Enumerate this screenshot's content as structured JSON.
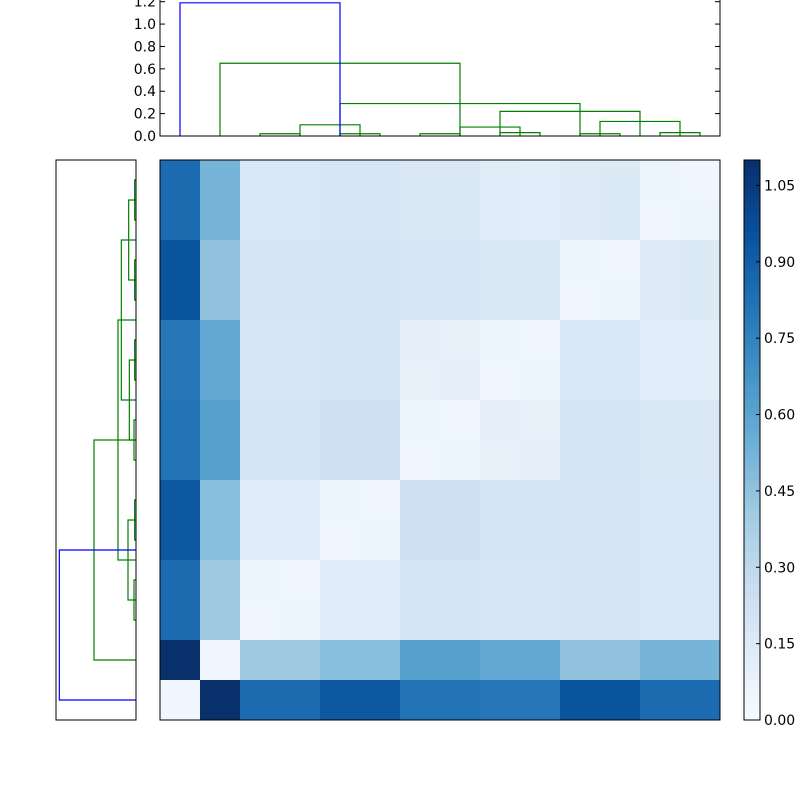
{
  "chart_data": [
    {
      "type": "dendrogram",
      "orientation": "top",
      "ylim": [
        0.0,
        1.2
      ],
      "yticks": [
        "0.0",
        "0.2",
        "0.4",
        "0.6",
        "0.8",
        "1.0",
        "1.2"
      ],
      "leaf_count": 14,
      "links": [
        {
          "left": 2,
          "right": 3,
          "height": 0.02,
          "color": "#008000"
        },
        {
          "left": 4,
          "right": 5,
          "height": 0.02,
          "color": "#008000"
        },
        {
          "left": 6,
          "right": 7,
          "height": 0.02,
          "color": "#008000"
        },
        {
          "left": 8,
          "right": 9,
          "height": 0.03,
          "color": "#008000"
        },
        {
          "left": 10,
          "right": 11,
          "height": 0.02,
          "color": "#008000"
        },
        {
          "left": 12,
          "right": 13,
          "height": 0.03,
          "color": "#008000"
        },
        {
          "left": 3,
          "right": 4.5,
          "height": 0.1,
          "color": "#008000"
        },
        {
          "left": 7,
          "right": 8.5,
          "height": 0.08,
          "color": "#008000"
        },
        {
          "left": 10.5,
          "right": 12.5,
          "height": 0.13,
          "color": "#008000"
        },
        {
          "left": 8,
          "right": 11.5,
          "height": 0.22,
          "color": "#008000"
        },
        {
          "left": 4,
          "right": 10,
          "height": 0.29,
          "color": "#008000"
        },
        {
          "left": 1,
          "right": 7,
          "height": 0.65,
          "color": "#008000"
        },
        {
          "left": 0,
          "right": 4,
          "height": 1.19,
          "color": "#0000ff"
        }
      ]
    },
    {
      "type": "dendrogram",
      "orientation": "left",
      "leaf_count": 14,
      "links": [
        {
          "left": 0,
          "right": 1,
          "height": 0.02,
          "color": "#008000"
        },
        {
          "left": 2,
          "right": 3,
          "height": 0.02,
          "color": "#008000"
        },
        {
          "left": 4,
          "right": 5,
          "height": 0.02,
          "color": "#008000"
        },
        {
          "left": 6,
          "right": 7,
          "height": 0.03,
          "color": "#008000"
        },
        {
          "left": 8,
          "right": 9,
          "height": 0.02,
          "color": "#008000"
        },
        {
          "left": 10,
          "right": 11,
          "height": 0.03,
          "color": "#008000"
        },
        {
          "left": 0.5,
          "right": 2.5,
          "height": 0.11,
          "color": "#008000"
        },
        {
          "left": 4.5,
          "right": 6.5,
          "height": 0.1,
          "color": "#008000"
        },
        {
          "left": 8.5,
          "right": 10.5,
          "height": 0.12,
          "color": "#008000"
        },
        {
          "left": 1.5,
          "right": 5.5,
          "height": 0.22,
          "color": "#008000"
        },
        {
          "left": 3.5,
          "right": 9.5,
          "height": 0.27,
          "color": "#008000"
        },
        {
          "left": 6.5,
          "right": 12,
          "height": 0.63,
          "color": "#008000"
        },
        {
          "left": 9.25,
          "right": 13,
          "height": 1.15,
          "color": "#0000ff"
        }
      ]
    },
    {
      "type": "heatmap",
      "rows": 14,
      "cols": 14,
      "colormap": "Blues",
      "colormap_stops": [
        "#f7fbff",
        "#deebf7",
        "#c6dbef",
        "#9ecae1",
        "#6baed6",
        "#4292c6",
        "#2171b5",
        "#08519c",
        "#08306b"
      ],
      "vmin": 0.0,
      "vmax": 1.1,
      "values": [
        [
          0.85,
          0.52,
          0.17,
          0.17,
          0.18,
          0.18,
          0.16,
          0.16,
          0.13,
          0.12,
          0.14,
          0.15,
          0.06,
          0.04
        ],
        [
          0.85,
          0.52,
          0.17,
          0.17,
          0.18,
          0.18,
          0.16,
          0.16,
          0.13,
          0.12,
          0.14,
          0.15,
          0.04,
          0.06
        ],
        [
          0.95,
          0.45,
          0.19,
          0.19,
          0.2,
          0.2,
          0.18,
          0.18,
          0.16,
          0.16,
          0.06,
          0.04,
          0.14,
          0.15
        ],
        [
          0.95,
          0.45,
          0.19,
          0.19,
          0.2,
          0.2,
          0.18,
          0.18,
          0.16,
          0.16,
          0.04,
          0.06,
          0.14,
          0.15
        ],
        [
          0.8,
          0.58,
          0.18,
          0.18,
          0.2,
          0.2,
          0.1,
          0.09,
          0.06,
          0.04,
          0.17,
          0.17,
          0.12,
          0.12
        ],
        [
          0.8,
          0.58,
          0.18,
          0.18,
          0.2,
          0.2,
          0.09,
          0.1,
          0.04,
          0.06,
          0.17,
          0.17,
          0.12,
          0.12
        ],
        [
          0.82,
          0.62,
          0.2,
          0.2,
          0.23,
          0.23,
          0.06,
          0.04,
          0.1,
          0.09,
          0.2,
          0.2,
          0.16,
          0.16
        ],
        [
          0.82,
          0.62,
          0.2,
          0.2,
          0.23,
          0.23,
          0.04,
          0.06,
          0.09,
          0.1,
          0.2,
          0.2,
          0.16,
          0.16
        ],
        [
          0.93,
          0.47,
          0.13,
          0.13,
          0.06,
          0.04,
          0.23,
          0.23,
          0.2,
          0.2,
          0.19,
          0.19,
          0.17,
          0.17
        ],
        [
          0.93,
          0.47,
          0.13,
          0.13,
          0.04,
          0.06,
          0.23,
          0.23,
          0.2,
          0.2,
          0.19,
          0.19,
          0.17,
          0.17
        ],
        [
          0.85,
          0.41,
          0.06,
          0.04,
          0.13,
          0.13,
          0.2,
          0.2,
          0.18,
          0.18,
          0.19,
          0.19,
          0.17,
          0.17
        ],
        [
          0.85,
          0.41,
          0.04,
          0.06,
          0.13,
          0.13,
          0.2,
          0.2,
          0.18,
          0.18,
          0.19,
          0.19,
          0.17,
          0.17
        ],
        [
          1.1,
          0.04,
          0.41,
          0.41,
          0.47,
          0.47,
          0.62,
          0.62,
          0.58,
          0.58,
          0.45,
          0.45,
          0.52,
          0.52
        ],
        [
          0.04,
          1.1,
          0.85,
          0.85,
          0.93,
          0.93,
          0.82,
          0.82,
          0.8,
          0.8,
          0.95,
          0.95,
          0.85,
          0.85
        ]
      ]
    },
    {
      "type": "colorbar",
      "range": [
        0.0,
        1.1
      ],
      "ticks": [
        "0.00",
        "0.15",
        "0.30",
        "0.45",
        "0.60",
        "0.75",
        "0.90",
        "1.05"
      ]
    }
  ]
}
